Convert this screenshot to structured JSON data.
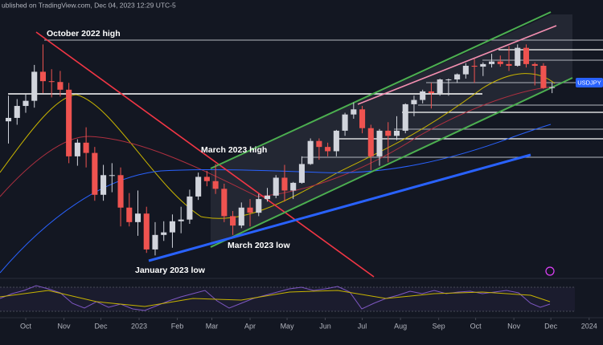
{
  "chart_data": {
    "type": "candlestick",
    "title": "ublished on TradingView.com, Dec 04, 2023 12:29 UTC-5",
    "symbol": "USDJPY",
    "annotations": [
      "October 2022 high",
      "March 2023 high",
      "March 2023 low",
      "January 2023 low"
    ],
    "up_color": "#d1d4dc",
    "down_color": "#ef5350",
    "grid": false,
    "xlim": [
      -0.98,
      68.9
    ],
    "ylim": [
      124.7,
      157.1
    ],
    "xticks": [
      {
        "value": 2,
        "label": "Oct"
      },
      {
        "value": 6.43,
        "label": "Nov"
      },
      {
        "value": 10.71,
        "label": "Dec"
      },
      {
        "value": 15.14,
        "label": "2023"
      },
      {
        "value": 19.57,
        "label": "Feb"
      },
      {
        "value": 23.57,
        "label": "Mar"
      },
      {
        "value": 28,
        "label": "Apr"
      },
      {
        "value": 32.29,
        "label": "May"
      },
      {
        "value": 36.71,
        "label": "Jun"
      },
      {
        "value": 41,
        "label": "Jul"
      },
      {
        "value": 45.43,
        "label": "Aug"
      },
      {
        "value": 49.86,
        "label": "Sep"
      },
      {
        "value": 54.14,
        "label": "Oct"
      },
      {
        "value": 58.57,
        "label": "Nov"
      },
      {
        "value": 62.86,
        "label": "Dec"
      },
      {
        "value": 67.29,
        "label": "2024"
      }
    ],
    "open": [
      142.9,
      143.3,
      144.7,
      145.3,
      148.7,
      147.6,
      147.5,
      146.6,
      138.8,
      140.4,
      139.2,
      134.3,
      136.6,
      136.6,
      132.8,
      131.1,
      132.1,
      127.9,
      129.6,
      129.9,
      131.2,
      131.4,
      134.1,
      136.4,
      135.9,
      135.0,
      131.8,
      130.7,
      132.8,
      132.2,
      133.8,
      134.2,
      136.3,
      134.8,
      135.7,
      137.9,
      140.6,
      139.9,
      139.4,
      141.8,
      143.7,
      144.3,
      142.1,
      138.8,
      141.8,
      141.2,
      141.8,
      144.9,
      145.4,
      146.4,
      146.2,
      147.8,
      147.8,
      148.4,
      149.4,
      149.3,
      149.6,
      149.9,
      149.6,
      149.4,
      151.5,
      149.6,
      149.4,
      146.8
    ],
    "high": [
      145.9,
      145.5,
      146.1,
      149.5,
      151.9,
      149.0,
      148.8,
      147.4,
      140.8,
      142.2,
      139.9,
      137.8,
      138.0,
      137.5,
      134.5,
      134.8,
      132.9,
      131.1,
      131.2,
      132.0,
      132.9,
      134.9,
      136.9,
      137.1,
      137.9,
      135.6,
      132.4,
      133.4,
      133.8,
      134.4,
      135.1,
      136.6,
      137.8,
      135.8,
      138.8,
      140.9,
      140.9,
      140.4,
      141.9,
      143.9,
      145.1,
      144.7,
      142.5,
      142.0,
      142.8,
      143.5,
      145.0,
      145.9,
      146.6,
      147.4,
      147.9,
      147.9,
      148.5,
      149.7,
      150.2,
      149.8,
      150.8,
      150.6,
      151.7,
      151.9,
      151.9,
      149.8,
      149.7,
      147.4
    ],
    "low": [
      140.3,
      142.5,
      143.9,
      144.5,
      146.2,
      145.7,
      145.8,
      138.0,
      137.7,
      137.5,
      133.6,
      133.6,
      134.6,
      130.6,
      130.6,
      129.5,
      127.5,
      127.2,
      128.9,
      128.1,
      129.8,
      130.9,
      133.7,
      135.3,
      134.4,
      131.1,
      129.6,
      130.4,
      130.6,
      131.8,
      133.5,
      133.9,
      133.5,
      133.8,
      135.6,
      137.8,
      138.4,
      138.8,
      138.8,
      141.2,
      143.2,
      141.5,
      137.2,
      137.7,
      138.1,
      140.7,
      141.5,
      143.5,
      145.0,
      144.4,
      145.9,
      145.9,
      147.4,
      147.9,
      147.4,
      148.2,
      149.2,
      149.3,
      148.8,
      149.3,
      149.2,
      147.1,
      146.7,
      146.2
    ],
    "close": [
      143.3,
      144.7,
      145.3,
      148.7,
      147.6,
      147.5,
      146.6,
      138.8,
      140.4,
      139.2,
      134.3,
      136.6,
      136.6,
      132.8,
      131.1,
      132.1,
      127.9,
      129.6,
      129.9,
      131.2,
      131.4,
      134.1,
      136.4,
      135.9,
      135.0,
      131.8,
      130.7,
      132.8,
      132.2,
      133.8,
      134.2,
      136.3,
      134.8,
      135.7,
      137.9,
      140.6,
      139.9,
      139.4,
      141.8,
      143.7,
      144.3,
      142.1,
      138.8,
      141.8,
      141.2,
      141.8,
      144.9,
      145.4,
      146.4,
      146.2,
      147.8,
      147.8,
      148.4,
      149.4,
      149.3,
      149.6,
      149.9,
      149.6,
      149.4,
      151.5,
      149.6,
      149.4,
      146.8,
      146.9
    ]
  }
}
